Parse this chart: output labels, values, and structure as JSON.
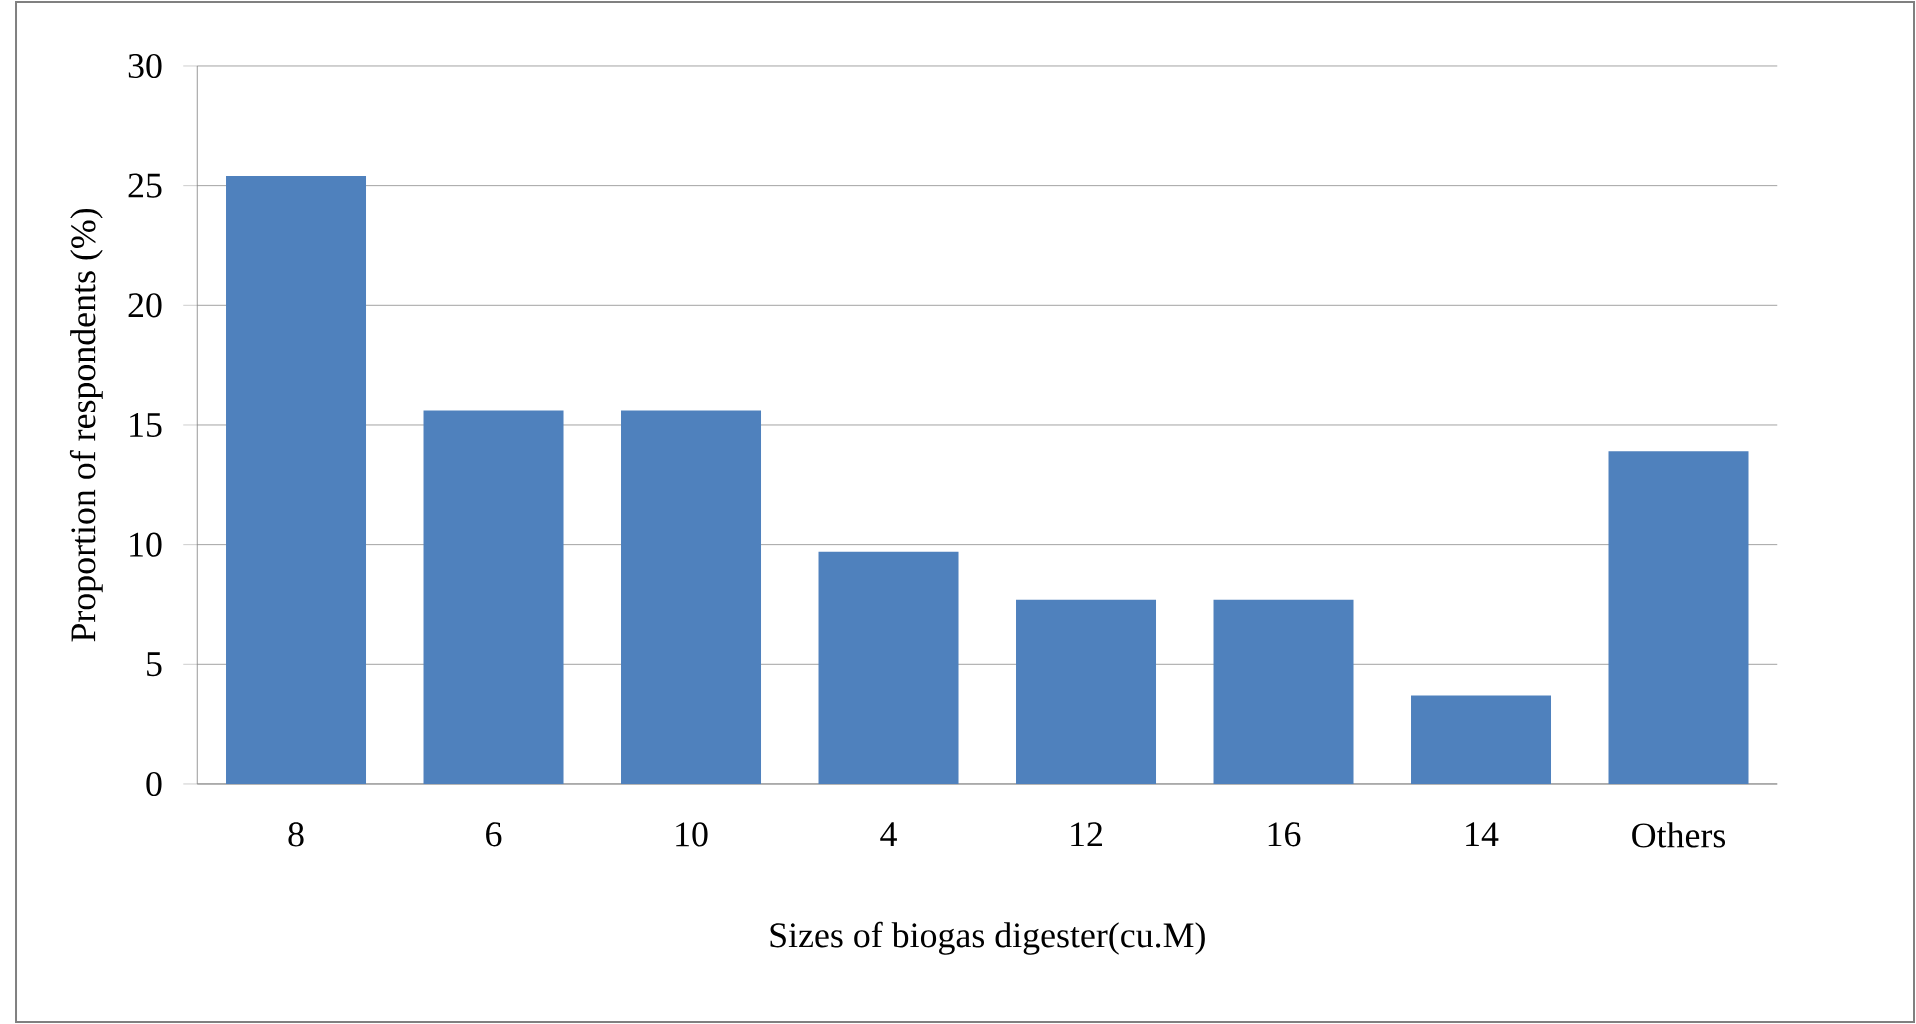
{
  "chart_data": {
    "type": "bar",
    "xlabel": "Sizes of biogas digester(cu.M)",
    "ylabel": "Proportion of respondents (%)",
    "categories": [
      "8",
      "6",
      "10",
      "4",
      "12",
      "16",
      "14",
      "Others"
    ],
    "values": [
      25.4,
      15.6,
      15.6,
      9.7,
      7.7,
      7.7,
      3.7,
      13.9
    ],
    "color": "#4f81bd",
    "ylim": [
      0,
      30
    ],
    "yticks": [
      0,
      5,
      10,
      15,
      20,
      25,
      30
    ],
    "grid": "y"
  }
}
